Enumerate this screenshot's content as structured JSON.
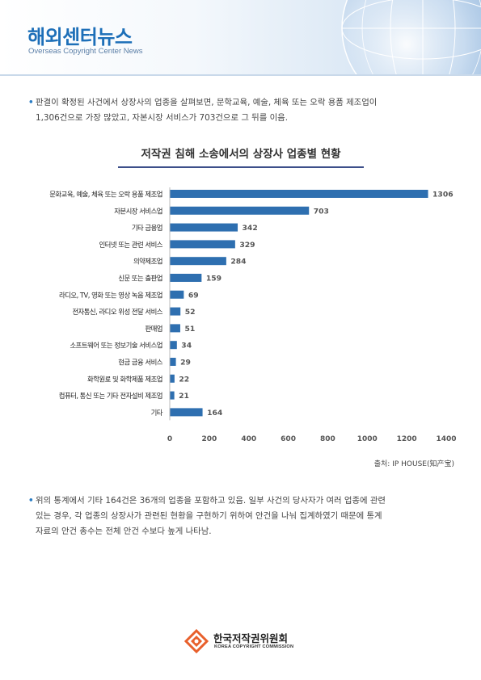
{
  "header": {
    "title": "해외센터뉴스",
    "subtitle": "Overseas Copyright Center News"
  },
  "paragraph1": {
    "line1": "판결이 확정된 사건에서 상장사의 업종을 살펴보면, 문학교육, 예술, 체육 또는 오락 용품 제조업이",
    "line2": "1,306건으로 가장 많았고, 자본시장 서비스가 703건으로 그 뒤를 이음."
  },
  "chart_data": {
    "type": "bar",
    "orientation": "horizontal",
    "title": "저작권 침해 소송에서의 상장사 업종별 현황",
    "categories": [
      "문화교육, 예술, 체육 또는 오락 용품 제조업",
      "자본시장 서비스업",
      "기타 금융업",
      "인터넷 또는 관련 서비스",
      "의약제조업",
      "신문 또는 출판업",
      "라디오, TV, 영화 또는 영상 녹음 제조업",
      "전자통신, 라디오 위성 전달 서비스",
      "판매업",
      "소프트웨어 또는 정보기술 서비스업",
      "현금 금융 서비스",
      "화학원료 및 화학제품 제조업",
      "컴퓨터, 통신 또는 기타 전자설비 제조업",
      "기타"
    ],
    "values": [
      1306,
      703,
      342,
      329,
      284,
      159,
      69,
      52,
      51,
      34,
      29,
      22,
      21,
      164
    ],
    "xlim": [
      0,
      1400
    ],
    "xticks": [
      "0",
      "200",
      "400",
      "600",
      "800",
      "1000",
      "1200",
      "1400"
    ],
    "bar_color": "#2e6fb0",
    "grid": false
  },
  "source": "출처: IP HOUSE(知产宝)",
  "paragraph2": {
    "line1": "위의 통계에서 기타 164건은 36개의 업종을 포함하고 있음. 일부 사건의 당사자가 여러 업종에 관련",
    "line2": "있는 경우, 각 업종의 상장사가 관련된 현황을 구현하기 위하여 안건을 나눠 집계하였기 때문에 통계",
    "line3": "자료의 안건 총수는 전체 안건 수보다 높게 나타남."
  },
  "footer": {
    "org_name": "한국저작권위원회",
    "org_name_en": "KOREA COPYRIGHT COMMISSION"
  },
  "colors": {
    "brand_blue": "#1d6fb8",
    "bullet_blue": "#2a7dc4",
    "logo_orange": "#e8602c"
  }
}
